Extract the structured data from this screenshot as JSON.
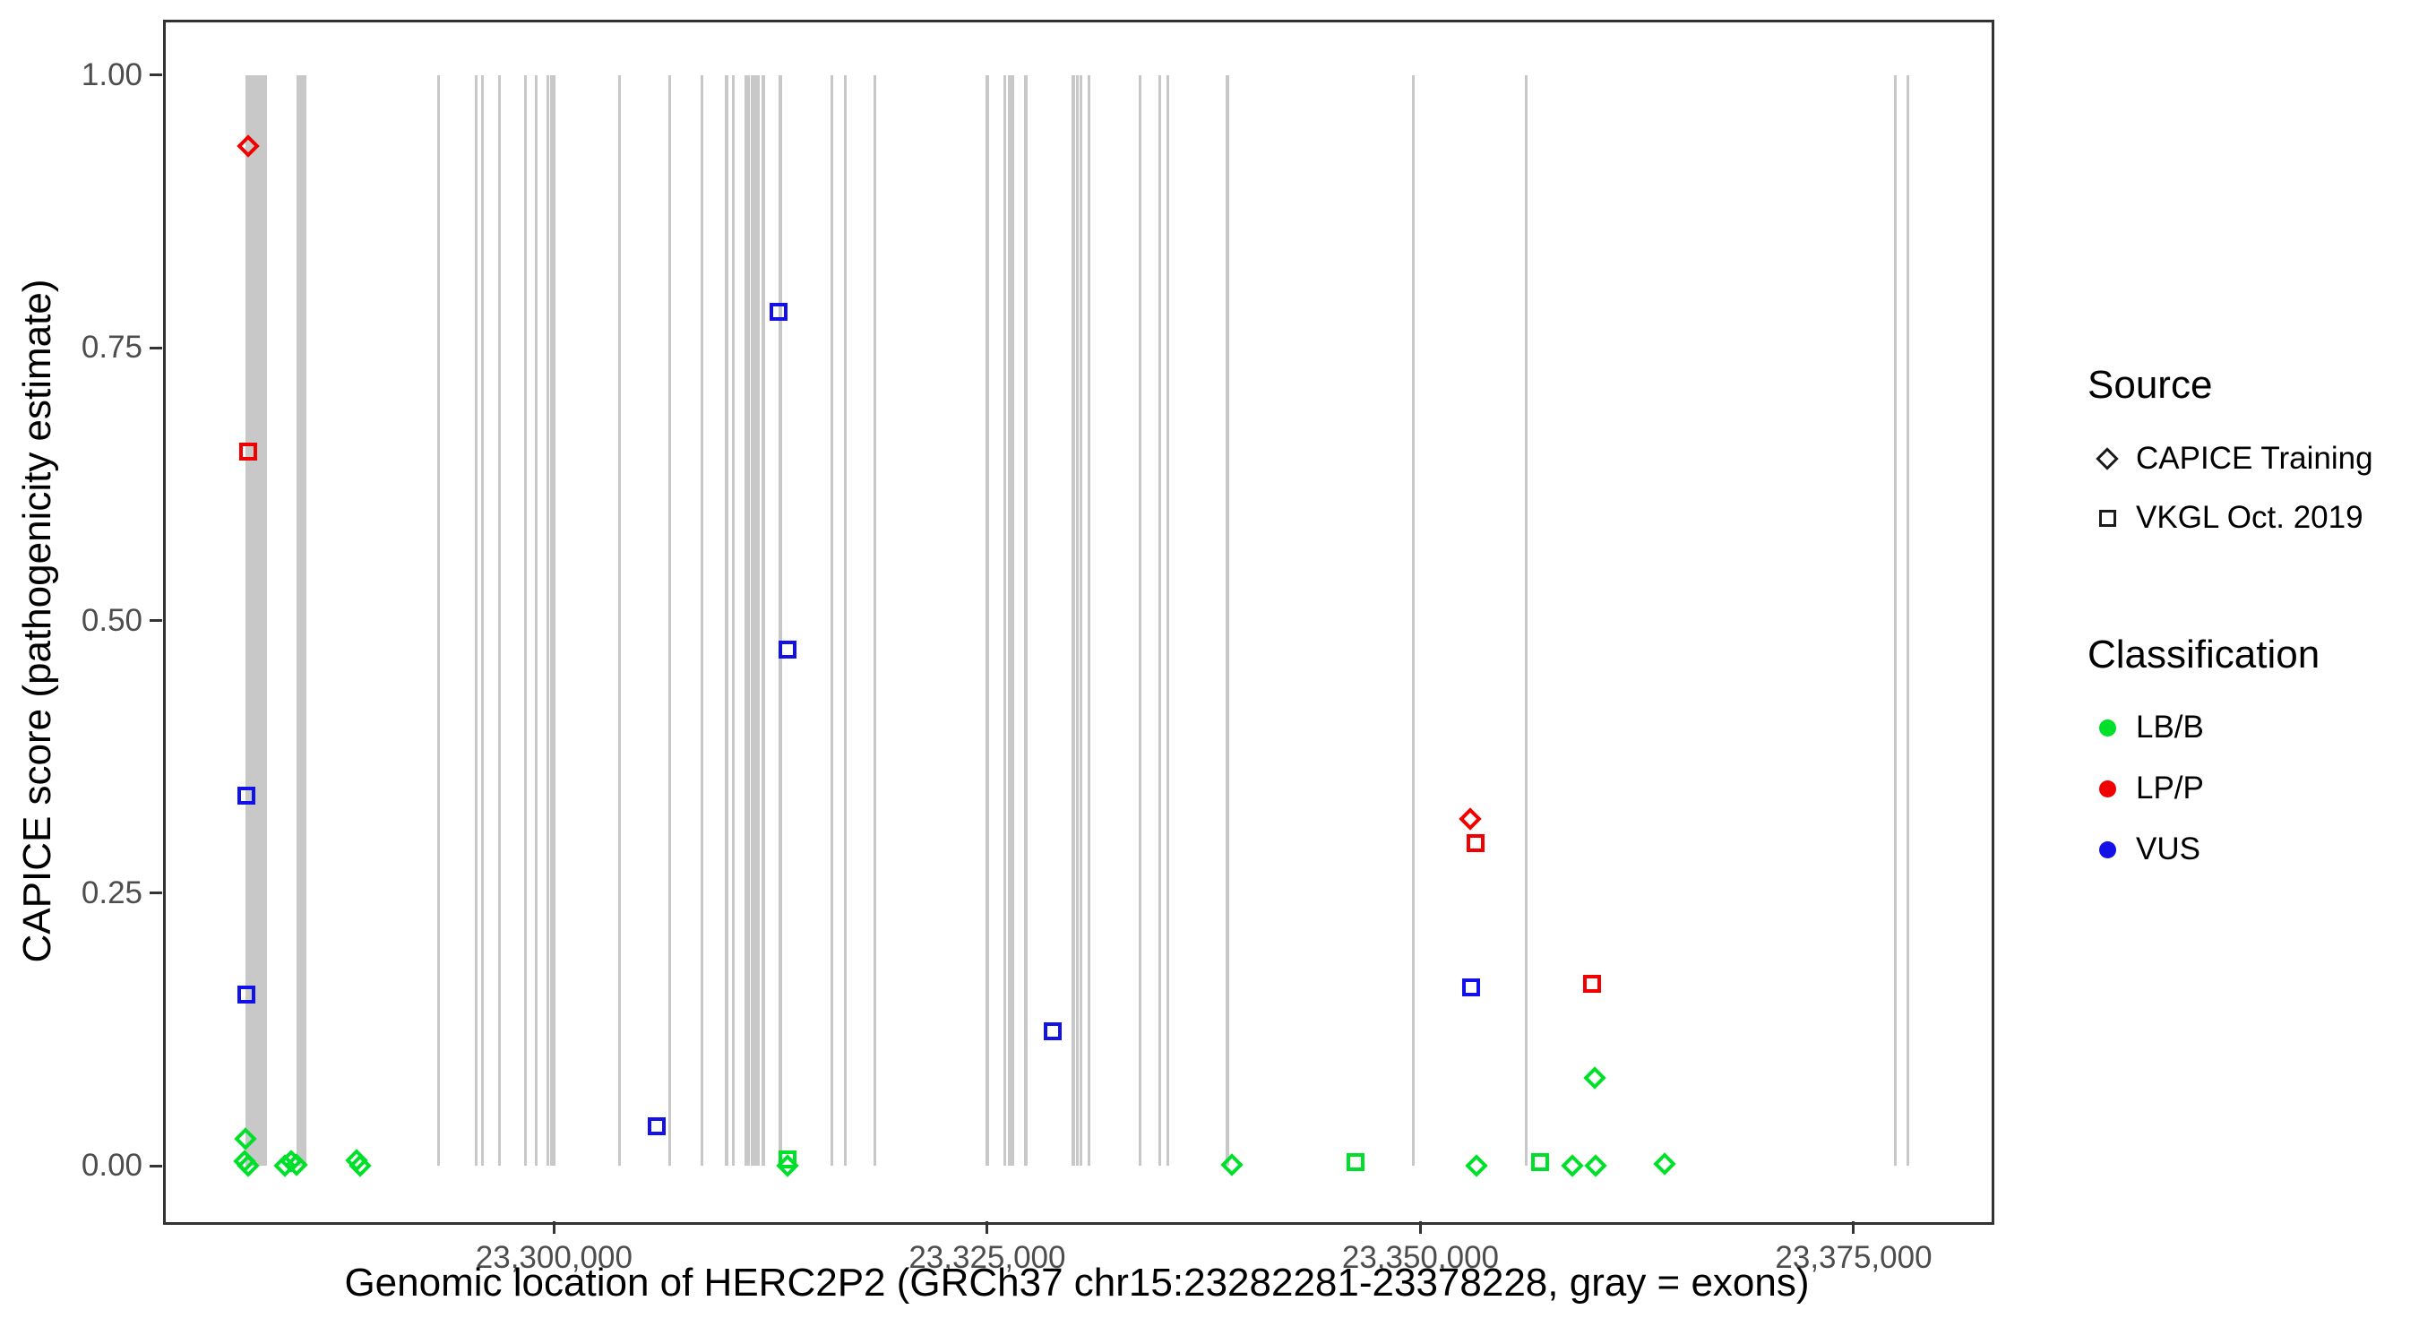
{
  "colors": {
    "LB/B": "#00E02A",
    "LP/P": "#F20000",
    "VUS": "#1212E8",
    "exon": "#C8C8C8",
    "axis_text": "#4D4D4D",
    "panel_border": "#333333",
    "legend_key": "#1A1A1A"
  },
  "legend": {
    "source": {
      "title": "Source",
      "items": [
        {
          "label": "CAPICE Training",
          "marker": "diamond"
        },
        {
          "label": "VKGL Oct. 2019",
          "marker": "square"
        }
      ]
    },
    "classification": {
      "title": "Classification",
      "items": [
        {
          "label": "LB/B",
          "color_key": "LB/B"
        },
        {
          "label": "LP/P",
          "color_key": "LP/P"
        },
        {
          "label": "VUS",
          "color_key": "VUS"
        }
      ]
    }
  },
  "chart_data": {
    "type": "scatter",
    "title": "",
    "xlabel": "Genomic location of HERC2P2 (GRCh37 chr15:23282281-23378228, gray = exons)",
    "ylabel": "CAPICE score (pathogenicity estimate)",
    "x_domain": [
      23277490,
      23382860
    ],
    "y_domain": [
      -0.05,
      1.05
    ],
    "grid": false,
    "legend_position": "right",
    "x_ticks": [
      {
        "value": 23300000,
        "label": "23,300,000"
      },
      {
        "value": 23325000,
        "label": "23,325,000"
      },
      {
        "value": 23350000,
        "label": "23,350,000"
      },
      {
        "value": 23375000,
        "label": "23,375,000"
      }
    ],
    "y_ticks": [
      {
        "value": 0.0,
        "label": "0.00"
      },
      {
        "value": 0.25,
        "label": "0.25"
      },
      {
        "value": 0.5,
        "label": "0.50"
      },
      {
        "value": 0.75,
        "label": "0.75"
      },
      {
        "value": 1.0,
        "label": "1.00"
      }
    ],
    "exons": [
      [
        23282200,
        23283450
      ],
      [
        23285140,
        23285720
      ],
      [
        23293260,
        23293420
      ],
      [
        23295430,
        23295590
      ],
      [
        23295790,
        23295900
      ],
      [
        23296770,
        23296880
      ],
      [
        23298270,
        23298380
      ],
      [
        23298890,
        23299050
      ],
      [
        23299570,
        23299720
      ],
      [
        23299770,
        23300080
      ],
      [
        23303700,
        23303860
      ],
      [
        23306600,
        23306700
      ],
      [
        23308460,
        23308610
      ],
      [
        23309850,
        23310060
      ],
      [
        23310270,
        23310420
      ],
      [
        23310990,
        23311300
      ],
      [
        23311350,
        23311870
      ],
      [
        23311970,
        23312180
      ],
      [
        23312960,
        23313160
      ],
      [
        23315960,
        23316110
      ],
      [
        23316730,
        23316890
      ],
      [
        23318440,
        23318590
      ],
      [
        23324900,
        23325110
      ],
      [
        23325930,
        23326090
      ],
      [
        23326190,
        23326290
      ],
      [
        23326350,
        23326550
      ],
      [
        23327120,
        23327330
      ],
      [
        23329860,
        23330070
      ],
      [
        23330120,
        23330280
      ],
      [
        23330330,
        23330480
      ],
      [
        23330790,
        23330950
      ],
      [
        23333740,
        23333890
      ],
      [
        23334880,
        23335030
      ],
      [
        23335340,
        23335500
      ],
      [
        23338750,
        23338960
      ],
      [
        23349510,
        23349660
      ],
      [
        23356020,
        23356180
      ],
      [
        23377320,
        23377420
      ],
      [
        23378050,
        23378150
      ]
    ],
    "points": [
      {
        "x": 23282334,
        "y": 0.935,
        "source": "CAPICE Training",
        "classification": "LP/P"
      },
      {
        "x": 23282334,
        "y": 0.655,
        "source": "VKGL Oct. 2019",
        "classification": "LP/P"
      },
      {
        "x": 23282231,
        "y": 0.339,
        "source": "VKGL Oct. 2019",
        "classification": "VUS"
      },
      {
        "x": 23282231,
        "y": 0.157,
        "source": "VKGL Oct. 2019",
        "classification": "VUS"
      },
      {
        "x": 23282210,
        "y": 0.025,
        "source": "CAPICE Training",
        "classification": "LB/B"
      },
      {
        "x": 23282160,
        "y": 0.004,
        "source": "CAPICE Training",
        "classification": "LB/B"
      },
      {
        "x": 23282365,
        "y": 0.0,
        "source": "CAPICE Training",
        "classification": "LB/B"
      },
      {
        "x": 23284470,
        "y": 0.0,
        "source": "CAPICE Training",
        "classification": "LB/B"
      },
      {
        "x": 23284830,
        "y": 0.004,
        "source": "CAPICE Training",
        "classification": "LB/B"
      },
      {
        "x": 23285140,
        "y": 0.001,
        "source": "CAPICE Training",
        "classification": "LB/B"
      },
      {
        "x": 23288600,
        "y": 0.005,
        "source": "CAPICE Training",
        "classification": "LB/B"
      },
      {
        "x": 23288810,
        "y": 0.0,
        "source": "CAPICE Training",
        "classification": "LB/B"
      },
      {
        "x": 23305930,
        "y": 0.036,
        "source": "VKGL Oct. 2019",
        "classification": "VUS"
      },
      {
        "x": 23312950,
        "y": 0.783,
        "source": "VKGL Oct. 2019",
        "classification": "VUS"
      },
      {
        "x": 23313490,
        "y": 0.473,
        "source": "VKGL Oct. 2019",
        "classification": "VUS"
      },
      {
        "x": 23313500,
        "y": 0.0,
        "source": "CAPICE Training",
        "classification": "LB/B"
      },
      {
        "x": 23313500,
        "y": 0.006,
        "source": "VKGL Oct. 2019",
        "classification": "LB/B"
      },
      {
        "x": 23328780,
        "y": 0.123,
        "source": "VKGL Oct. 2019",
        "classification": "VUS"
      },
      {
        "x": 23339100,
        "y": 0.001,
        "source": "CAPICE Training",
        "classification": "LB/B"
      },
      {
        "x": 23346250,
        "y": 0.003,
        "source": "VKGL Oct. 2019",
        "classification": "LB/B"
      },
      {
        "x": 23352870,
        "y": 0.318,
        "source": "CAPICE Training",
        "classification": "LP/P"
      },
      {
        "x": 23353160,
        "y": 0.296,
        "source": "VKGL Oct. 2019",
        "classification": "LP/P"
      },
      {
        "x": 23352930,
        "y": 0.164,
        "source": "VKGL Oct. 2019",
        "classification": "VUS"
      },
      {
        "x": 23353230,
        "y": 0.0,
        "source": "CAPICE Training",
        "classification": "LB/B"
      },
      {
        "x": 23356890,
        "y": 0.003,
        "source": "VKGL Oct. 2019",
        "classification": "VUS"
      },
      {
        "x": 23356910,
        "y": 0.003,
        "source": "VKGL Oct. 2019",
        "classification": "LB/B"
      },
      {
        "x": 23358760,
        "y": 0.0,
        "source": "CAPICE Training",
        "classification": "LB/B"
      },
      {
        "x": 23360100,
        "y": 0.0,
        "source": "CAPICE Training",
        "classification": "LB/B"
      },
      {
        "x": 23359900,
        "y": 0.167,
        "source": "VKGL Oct. 2019",
        "classification": "LP/P"
      },
      {
        "x": 23360060,
        "y": 0.081,
        "source": "CAPICE Training",
        "classification": "LB/B"
      },
      {
        "x": 23364100,
        "y": 0.002,
        "source": "CAPICE Training",
        "classification": "LB/B"
      }
    ]
  }
}
